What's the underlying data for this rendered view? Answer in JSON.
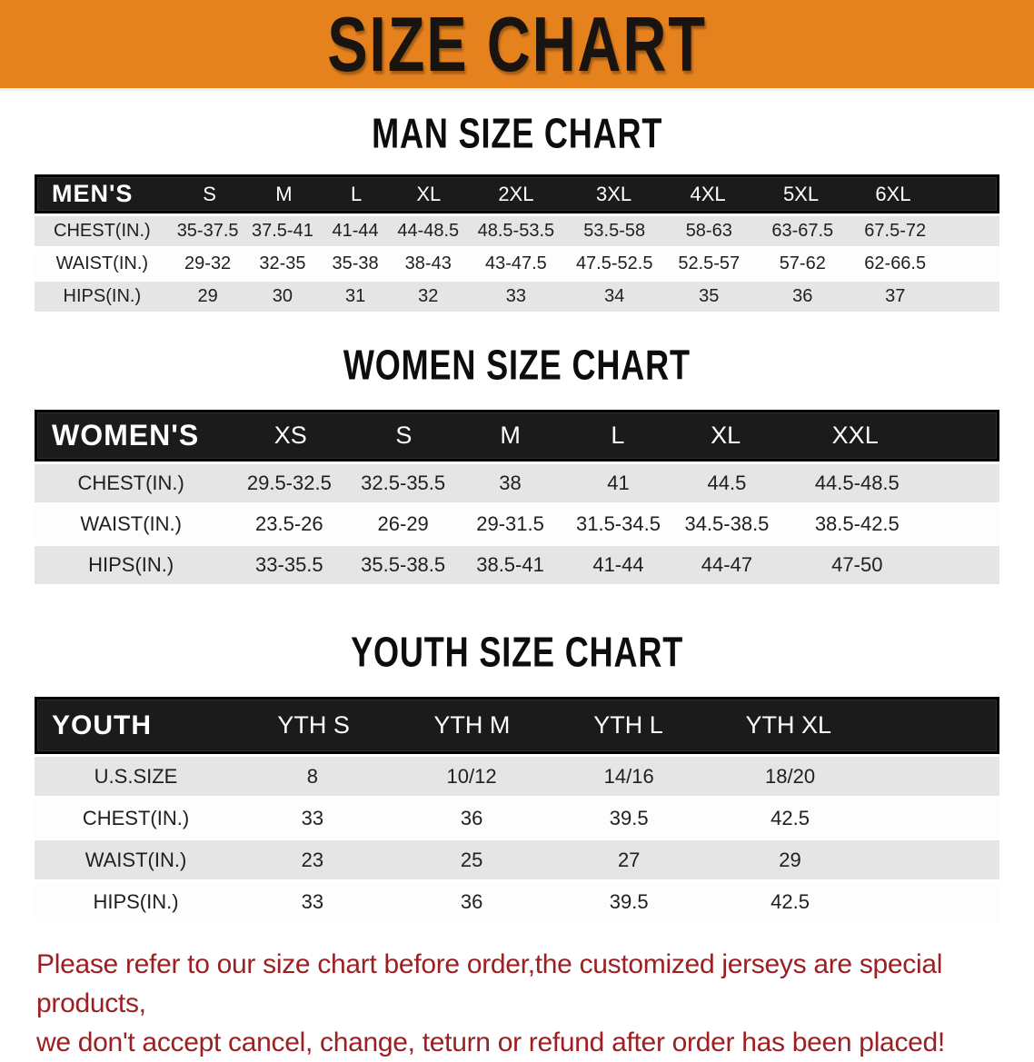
{
  "banner": {
    "title": "SIZE CHART"
  },
  "colors": {
    "banner_bg": "#E5821E",
    "header_bar_bg": "#1B1B1B",
    "header_text": "#FFFFFF",
    "row_gray": "#E5E5E5",
    "footer_red": "#9B2023"
  },
  "chart_data": [
    {
      "type": "table",
      "title": "MAN SIZE CHART",
      "columns": [
        "MEN'S",
        "S",
        "M",
        "L",
        "XL",
        "2XL",
        "3XL",
        "4XL",
        "5XL",
        "6XL"
      ],
      "rows": [
        {
          "label": "CHEST(IN.)",
          "values": [
            "35-37.5",
            "37.5-41",
            "41-44",
            "44-48.5",
            "48.5-53.5",
            "53.5-58",
            "58-63",
            "63-67.5",
            "67.5-72"
          ]
        },
        {
          "label": "WAIST(IN.)",
          "values": [
            "29-32",
            "32-35",
            "35-38",
            "38-43",
            "43-47.5",
            "47.5-52.5",
            "52.5-57",
            "57-62",
            "62-66.5"
          ]
        },
        {
          "label": "HIPS(IN.)",
          "values": [
            "29",
            "30",
            "31",
            "32",
            "33",
            "34",
            "35",
            "36",
            "37"
          ]
        }
      ]
    },
    {
      "type": "table",
      "title": "WOMEN SIZE CHART",
      "columns": [
        "WOMEN'S",
        "XS",
        "S",
        "M",
        "L",
        "XL",
        "XXL"
      ],
      "rows": [
        {
          "label": "CHEST(IN.)",
          "values": [
            "29.5-32.5",
            "32.5-35.5",
            "38",
            "41",
            "44.5",
            "44.5-48.5"
          ]
        },
        {
          "label": "WAIST(IN.)",
          "values": [
            "23.5-26",
            "26-29",
            "29-31.5",
            "31.5-34.5",
            "34.5-38.5",
            "38.5-42.5"
          ]
        },
        {
          "label": "HIPS(IN.)",
          "values": [
            "33-35.5",
            "35.5-38.5",
            "38.5-41",
            "41-44",
            "44-47",
            "47-50"
          ]
        }
      ]
    },
    {
      "type": "table",
      "title": "YOUTH SIZE CHART",
      "columns": [
        "YOUTH",
        "YTH S",
        "YTH M",
        "YTH L",
        "YTH XL"
      ],
      "rows": [
        {
          "label": "U.S.SIZE",
          "values": [
            "8",
            "10/12",
            "14/16",
            "18/20"
          ]
        },
        {
          "label": "CHEST(IN.)",
          "values": [
            "33",
            "36",
            "39.5",
            "42.5"
          ]
        },
        {
          "label": "WAIST(IN.)",
          "values": [
            "23",
            "25",
            "27",
            "29"
          ]
        },
        {
          "label": "HIPS(IN.)",
          "values": [
            "33",
            "36",
            "39.5",
            "42.5"
          ]
        }
      ]
    }
  ],
  "footer": {
    "line1": "Please refer to our size chart before order,the customized jerseys are special products,",
    "line2": "we don't accept cancel, change, teturn or refund after order has been placed!"
  }
}
